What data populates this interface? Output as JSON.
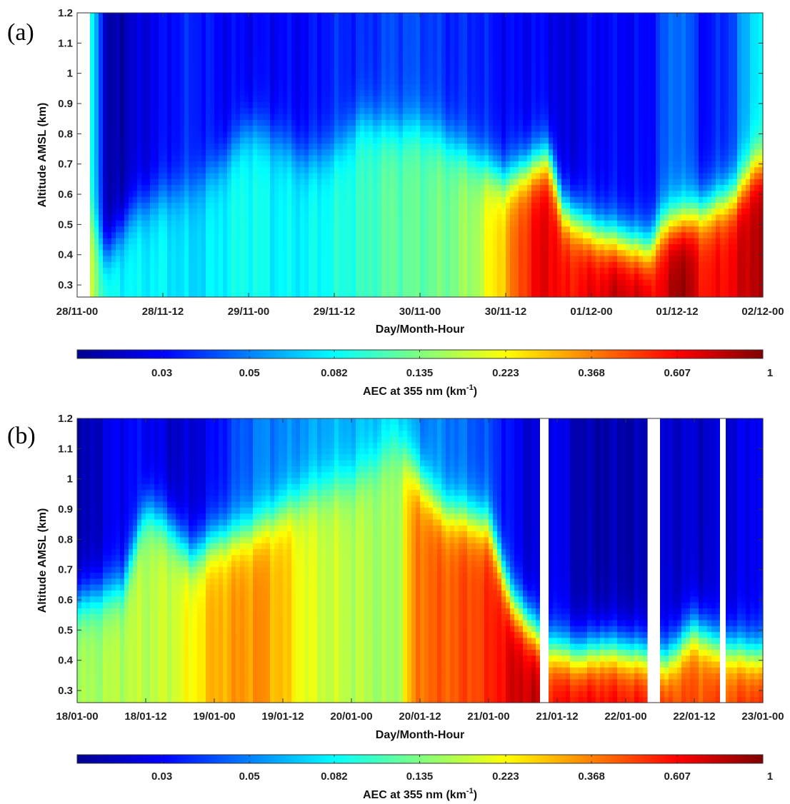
{
  "figure": {
    "background": "#ffffff"
  },
  "chart_data": [
    {
      "type": "heatmap",
      "panel_label": "(a)",
      "title": "",
      "xlabel": "Day/Month-Hour",
      "ylabel": "Altitude AMSL (km)",
      "xlim_hours": [
        0,
        96
      ],
      "ylim": [
        0.26,
        1.2
      ],
      "x_tick_labels": [
        "28/11-00",
        "28/11-12",
        "29/11-00",
        "29/11-12",
        "30/11-00",
        "30/11-12",
        "01/12-00",
        "01/12-12",
        "02/12-00"
      ],
      "y_ticks": [
        0.3,
        0.4,
        0.5,
        0.6,
        0.7,
        0.8,
        0.9,
        1,
        1.1,
        1.2
      ],
      "y_tick_labels": [
        "0.3",
        "0.4",
        "0.5",
        "0.6",
        "0.7",
        "0.8",
        "0.9",
        "1",
        "1.1",
        "1.2"
      ],
      "data_gaps_hours": [
        [
          0,
          1.5
        ]
      ],
      "profile_x_hours": [
        1.5,
        4,
        8,
        12,
        16,
        20,
        24,
        28,
        32,
        36,
        40,
        44,
        48,
        52,
        56,
        60,
        64,
        66,
        68,
        72,
        76,
        80,
        82,
        84,
        88,
        92,
        95
      ],
      "aerosol_layer_top_km": [
        0.55,
        0.4,
        0.55,
        0.6,
        0.62,
        0.7,
        0.82,
        0.78,
        0.72,
        0.75,
        0.85,
        0.82,
        0.83,
        0.78,
        0.72,
        0.65,
        0.7,
        0.72,
        0.55,
        0.48,
        0.45,
        0.42,
        0.5,
        0.52,
        0.55,
        0.6,
        0.7
      ],
      "surface_aec_km-1": [
        0.2,
        0.09,
        0.08,
        0.08,
        0.07,
        0.08,
        0.09,
        0.08,
        0.08,
        0.09,
        0.1,
        0.12,
        0.12,
        0.13,
        0.16,
        0.3,
        0.6,
        0.7,
        0.55,
        0.65,
        0.8,
        0.7,
        0.6,
        1.0,
        0.55,
        0.65,
        0.85
      ],
      "upper_aec_km-1": [
        0.1,
        0.02,
        0.025,
        0.03,
        0.035,
        0.03,
        0.03,
        0.03,
        0.03,
        0.035,
        0.035,
        0.04,
        0.04,
        0.035,
        0.035,
        0.03,
        0.03,
        0.03,
        0.025,
        0.03,
        0.03,
        0.03,
        0.04,
        0.05,
        0.03,
        0.04,
        0.08
      ]
    },
    {
      "type": "heatmap",
      "panel_label": "(b)",
      "title": "",
      "xlabel": "Day/Month-Hour",
      "ylabel": "Altitude AMSL (km)",
      "xlim_hours": [
        0,
        120
      ],
      "ylim": [
        0.26,
        1.2
      ],
      "x_tick_labels": [
        "18/01-00",
        "18/01-12",
        "19/01-00",
        "19/01-12",
        "20/01-00",
        "20/01-12",
        "21/01-00",
        "21/01-12",
        "22/01-00",
        "22/01-12",
        "23/01-00"
      ],
      "y_ticks": [
        0.3,
        0.4,
        0.5,
        0.6,
        0.7,
        0.8,
        0.9,
        1,
        1.1,
        1.2
      ],
      "y_tick_labels": [
        "0.3",
        "0.4",
        "0.5",
        "0.6",
        "0.7",
        "0.8",
        "0.9",
        "1",
        "1.1",
        "1.2"
      ],
      "data_gaps_hours": [
        [
          81,
          82.5
        ],
        [
          100,
          102
        ],
        [
          112.5,
          113.5
        ]
      ],
      "profile_x_hours": [
        0,
        4,
        8,
        12,
        16,
        20,
        24,
        28,
        32,
        36,
        40,
        44,
        48,
        52,
        56,
        60,
        64,
        68,
        72,
        76,
        80,
        83,
        88,
        92,
        96,
        99,
        103,
        108,
        112,
        114,
        119
      ],
      "aerosol_layer_top_km": [
        0.6,
        0.62,
        0.65,
        0.9,
        0.85,
        0.75,
        0.8,
        0.82,
        0.85,
        0.9,
        0.95,
        0.98,
        1.0,
        1.05,
        1.12,
        1.0,
        0.9,
        0.88,
        0.85,
        0.6,
        0.5,
        0.44,
        0.42,
        0.44,
        0.43,
        0.42,
        0.4,
        0.5,
        0.45,
        0.44,
        0.42
      ],
      "surface_aec_km-1": [
        0.15,
        0.16,
        0.17,
        0.17,
        0.18,
        0.22,
        0.3,
        0.33,
        0.35,
        0.28,
        0.2,
        0.18,
        0.17,
        0.16,
        0.15,
        0.4,
        0.42,
        0.45,
        0.5,
        0.7,
        0.8,
        0.6,
        0.65,
        0.62,
        0.6,
        0.6,
        0.5,
        0.45,
        0.48,
        0.45,
        0.55
      ],
      "upper_aec_km-1": [
        0.02,
        0.025,
        0.03,
        0.03,
        0.025,
        0.025,
        0.03,
        0.04,
        0.05,
        0.05,
        0.055,
        0.06,
        0.06,
        0.065,
        0.07,
        0.05,
        0.05,
        0.045,
        0.04,
        0.03,
        0.025,
        0.03,
        0.022,
        0.022,
        0.022,
        0.022,
        0.025,
        0.025,
        0.025,
        0.025,
        0.03
      ]
    }
  ],
  "colorbars": [
    {
      "label": "AEC at 355 nm (km",
      "label_superscript": "-1",
      "label_close": ")",
      "scale": "log",
      "range_km-1": [
        0.0183,
        1
      ],
      "tick_values": [
        0.03,
        0.05,
        0.082,
        0.135,
        0.223,
        0.368,
        0.607,
        1
      ],
      "tick_labels": [
        "0.03",
        "0.05",
        "0.082",
        "0.135",
        "0.223",
        "0.368",
        "0.607",
        "1"
      ],
      "colormap": "jet"
    },
    {
      "label": "AEC at 355 nm (km",
      "label_superscript": "-1",
      "label_close": ")",
      "scale": "log",
      "range_km-1": [
        0.0183,
        1
      ],
      "tick_values": [
        0.03,
        0.05,
        0.082,
        0.135,
        0.223,
        0.368,
        0.607,
        1
      ],
      "tick_labels": [
        "0.03",
        "0.05",
        "0.082",
        "0.135",
        "0.223",
        "0.368",
        "0.607",
        "1"
      ],
      "colormap": "jet"
    }
  ]
}
